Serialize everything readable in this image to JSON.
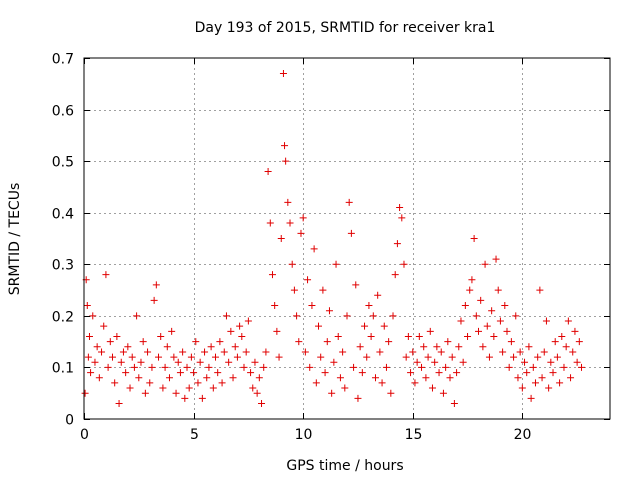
{
  "chart_data": {
    "type": "scatter",
    "title": "Day 193 of 2015, SRMTID for receiver kra1",
    "xlabel": "GPS time / hours",
    "ylabel": "SRMTID / TECUs",
    "xlim": [
      0,
      24
    ],
    "ylim": [
      0,
      0.7
    ],
    "xticks": [
      0,
      5,
      10,
      15,
      20
    ],
    "xtick_labels": [
      "0",
      "5",
      "10",
      "15",
      "20"
    ],
    "yticks": [
      0,
      0.1,
      0.2,
      0.3,
      0.4,
      0.5,
      0.6,
      0.7
    ],
    "ytick_labels": [
      "0",
      "0.1",
      "0.2",
      "0.3",
      "0.4",
      "0.5",
      "0.6",
      "0.7"
    ],
    "grid": true,
    "marker": "+",
    "color": "#e00000",
    "series_points": [
      [
        0.05,
        0.05
      ],
      [
        0.1,
        0.27
      ],
      [
        0.15,
        0.22
      ],
      [
        0.2,
        0.12
      ],
      [
        0.25,
        0.16
      ],
      [
        0.3,
        0.09
      ],
      [
        0.4,
        0.2
      ],
      [
        0.5,
        0.11
      ],
      [
        0.6,
        0.14
      ],
      [
        0.7,
        0.08
      ],
      [
        0.8,
        0.13
      ],
      [
        0.9,
        0.18
      ],
      [
        1.0,
        0.28
      ],
      [
        1.1,
        0.1
      ],
      [
        1.2,
        0.15
      ],
      [
        1.3,
        0.12
      ],
      [
        1.4,
        0.07
      ],
      [
        1.5,
        0.16
      ],
      [
        1.6,
        0.03
      ],
      [
        1.7,
        0.11
      ],
      [
        1.8,
        0.13
      ],
      [
        1.9,
        0.09
      ],
      [
        2.0,
        0.14
      ],
      [
        2.1,
        0.06
      ],
      [
        2.2,
        0.12
      ],
      [
        2.3,
        0.1
      ],
      [
        2.4,
        0.2
      ],
      [
        2.5,
        0.08
      ],
      [
        2.6,
        0.11
      ],
      [
        2.7,
        0.15
      ],
      [
        2.8,
        0.05
      ],
      [
        2.9,
        0.13
      ],
      [
        3.0,
        0.07
      ],
      [
        3.1,
        0.1
      ],
      [
        3.2,
        0.23
      ],
      [
        3.3,
        0.26
      ],
      [
        3.4,
        0.12
      ],
      [
        3.5,
        0.16
      ],
      [
        3.6,
        0.06
      ],
      [
        3.7,
        0.1
      ],
      [
        3.8,
        0.14
      ],
      [
        3.9,
        0.08
      ],
      [
        4.0,
        0.17
      ],
      [
        4.1,
        0.12
      ],
      [
        4.2,
        0.05
      ],
      [
        4.3,
        0.11
      ],
      [
        4.4,
        0.09
      ],
      [
        4.5,
        0.13
      ],
      [
        4.6,
        0.04
      ],
      [
        4.7,
        0.1
      ],
      [
        4.8,
        0.06
      ],
      [
        4.9,
        0.12
      ],
      [
        5.0,
        0.09
      ],
      [
        5.1,
        0.15
      ],
      [
        5.2,
        0.07
      ],
      [
        5.3,
        0.11
      ],
      [
        5.4,
        0.04
      ],
      [
        5.5,
        0.13
      ],
      [
        5.6,
        0.08
      ],
      [
        5.7,
        0.1
      ],
      [
        5.8,
        0.14
      ],
      [
        5.9,
        0.06
      ],
      [
        6.0,
        0.12
      ],
      [
        6.1,
        0.09
      ],
      [
        6.2,
        0.15
      ],
      [
        6.3,
        0.07
      ],
      [
        6.4,
        0.13
      ],
      [
        6.5,
        0.2
      ],
      [
        6.6,
        0.11
      ],
      [
        6.7,
        0.17
      ],
      [
        6.8,
        0.08
      ],
      [
        6.9,
        0.14
      ],
      [
        7.0,
        0.12
      ],
      [
        7.1,
        0.18
      ],
      [
        7.2,
        0.16
      ],
      [
        7.3,
        0.1
      ],
      [
        7.4,
        0.13
      ],
      [
        7.5,
        0.19
      ],
      [
        7.6,
        0.09
      ],
      [
        7.7,
        0.06
      ],
      [
        7.8,
        0.11
      ],
      [
        7.9,
        0.05
      ],
      [
        8.0,
        0.08
      ],
      [
        8.1,
        0.03
      ],
      [
        8.2,
        0.1
      ],
      [
        8.3,
        0.13
      ],
      [
        8.4,
        0.48
      ],
      [
        8.5,
        0.38
      ],
      [
        8.6,
        0.28
      ],
      [
        8.7,
        0.22
      ],
      [
        8.8,
        0.17
      ],
      [
        8.9,
        0.12
      ],
      [
        9.0,
        0.35
      ],
      [
        9.1,
        0.67
      ],
      [
        9.15,
        0.53
      ],
      [
        9.2,
        0.5
      ],
      [
        9.3,
        0.42
      ],
      [
        9.4,
        0.38
      ],
      [
        9.5,
        0.3
      ],
      [
        9.6,
        0.25
      ],
      [
        9.7,
        0.2
      ],
      [
        9.8,
        0.15
      ],
      [
        9.9,
        0.36
      ],
      [
        10.0,
        0.39
      ],
      [
        10.1,
        0.13
      ],
      [
        10.2,
        0.27
      ],
      [
        10.3,
        0.1
      ],
      [
        10.4,
        0.22
      ],
      [
        10.5,
        0.33
      ],
      [
        10.6,
        0.07
      ],
      [
        10.7,
        0.18
      ],
      [
        10.8,
        0.12
      ],
      [
        10.9,
        0.25
      ],
      [
        11.0,
        0.09
      ],
      [
        11.1,
        0.15
      ],
      [
        11.2,
        0.21
      ],
      [
        11.3,
        0.05
      ],
      [
        11.4,
        0.11
      ],
      [
        11.5,
        0.3
      ],
      [
        11.6,
        0.16
      ],
      [
        11.7,
        0.08
      ],
      [
        11.8,
        0.13
      ],
      [
        11.9,
        0.06
      ],
      [
        12.0,
        0.2
      ],
      [
        12.1,
        0.42
      ],
      [
        12.2,
        0.36
      ],
      [
        12.3,
        0.1
      ],
      [
        12.4,
        0.26
      ],
      [
        12.5,
        0.04
      ],
      [
        12.6,
        0.14
      ],
      [
        12.7,
        0.09
      ],
      [
        12.8,
        0.18
      ],
      [
        12.9,
        0.12
      ],
      [
        13.0,
        0.22
      ],
      [
        13.1,
        0.16
      ],
      [
        13.2,
        0.2
      ],
      [
        13.3,
        0.08
      ],
      [
        13.4,
        0.24
      ],
      [
        13.5,
        0.13
      ],
      [
        13.6,
        0.07
      ],
      [
        13.7,
        0.18
      ],
      [
        13.8,
        0.1
      ],
      [
        13.9,
        0.15
      ],
      [
        14.0,
        0.05
      ],
      [
        14.1,
        0.2
      ],
      [
        14.2,
        0.28
      ],
      [
        14.3,
        0.34
      ],
      [
        14.4,
        0.41
      ],
      [
        14.5,
        0.39
      ],
      [
        14.6,
        0.3
      ],
      [
        14.7,
        0.12
      ],
      [
        14.8,
        0.16
      ],
      [
        14.9,
        0.09
      ],
      [
        15.0,
        0.13
      ],
      [
        15.1,
        0.07
      ],
      [
        15.2,
        0.11
      ],
      [
        15.3,
        0.16
      ],
      [
        15.4,
        0.1
      ],
      [
        15.5,
        0.14
      ],
      [
        15.6,
        0.08
      ],
      [
        15.7,
        0.12
      ],
      [
        15.8,
        0.17
      ],
      [
        15.9,
        0.06
      ],
      [
        16.0,
        0.11
      ],
      [
        16.1,
        0.14
      ],
      [
        16.2,
        0.09
      ],
      [
        16.3,
        0.13
      ],
      [
        16.4,
        0.05
      ],
      [
        16.5,
        0.1
      ],
      [
        16.6,
        0.15
      ],
      [
        16.7,
        0.08
      ],
      [
        16.8,
        0.12
      ],
      [
        16.9,
        0.03
      ],
      [
        17.0,
        0.09
      ],
      [
        17.1,
        0.14
      ],
      [
        17.2,
        0.19
      ],
      [
        17.3,
        0.11
      ],
      [
        17.4,
        0.22
      ],
      [
        17.5,
        0.16
      ],
      [
        17.6,
        0.25
      ],
      [
        17.7,
        0.27
      ],
      [
        17.8,
        0.35
      ],
      [
        17.9,
        0.2
      ],
      [
        18.0,
        0.17
      ],
      [
        18.1,
        0.23
      ],
      [
        18.2,
        0.14
      ],
      [
        18.3,
        0.3
      ],
      [
        18.4,
        0.18
      ],
      [
        18.5,
        0.12
      ],
      [
        18.6,
        0.21
      ],
      [
        18.7,
        0.16
      ],
      [
        18.8,
        0.31
      ],
      [
        18.9,
        0.25
      ],
      [
        19.0,
        0.19
      ],
      [
        19.1,
        0.13
      ],
      [
        19.2,
        0.22
      ],
      [
        19.3,
        0.17
      ],
      [
        19.4,
        0.1
      ],
      [
        19.5,
        0.15
      ],
      [
        19.6,
        0.12
      ],
      [
        19.7,
        0.2
      ],
      [
        19.8,
        0.08
      ],
      [
        19.9,
        0.13
      ],
      [
        20.0,
        0.06
      ],
      [
        20.1,
        0.11
      ],
      [
        20.2,
        0.09
      ],
      [
        20.3,
        0.14
      ],
      [
        20.4,
        0.04
      ],
      [
        20.5,
        0.1
      ],
      [
        20.6,
        0.07
      ],
      [
        20.7,
        0.12
      ],
      [
        20.8,
        0.25
      ],
      [
        20.9,
        0.08
      ],
      [
        21.0,
        0.13
      ],
      [
        21.1,
        0.19
      ],
      [
        21.2,
        0.06
      ],
      [
        21.3,
        0.11
      ],
      [
        21.4,
        0.09
      ],
      [
        21.5,
        0.15
      ],
      [
        21.6,
        0.12
      ],
      [
        21.7,
        0.07
      ],
      [
        21.8,
        0.16
      ],
      [
        21.9,
        0.1
      ],
      [
        22.0,
        0.14
      ],
      [
        22.1,
        0.19
      ],
      [
        22.2,
        0.08
      ],
      [
        22.3,
        0.13
      ],
      [
        22.4,
        0.17
      ],
      [
        22.5,
        0.11
      ],
      [
        22.6,
        0.15
      ],
      [
        22.7,
        0.1
      ]
    ]
  }
}
